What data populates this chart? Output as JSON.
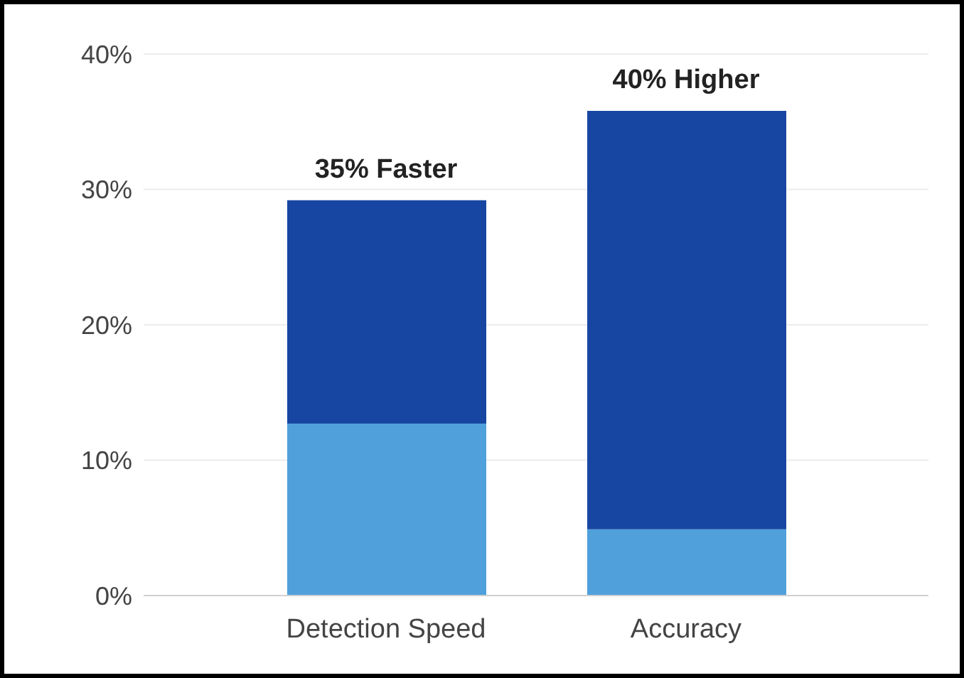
{
  "chart_data": {
    "type": "bar",
    "stacked": true,
    "categories": [
      "Detection Speed",
      "Accuracy"
    ],
    "series": [
      {
        "color": "#4fa0db",
        "values": [
          12.7,
          4.9
        ]
      },
      {
        "color": "#1746a2",
        "values": [
          16.5,
          30.9
        ]
      }
    ],
    "annotations": [
      {
        "text": "35% Faster",
        "x": "Detection Speed",
        "y": 29.2
      },
      {
        "text": "40% Higher",
        "x": "Accuracy",
        "y": 35.8
      }
    ],
    "ylim": [
      0,
      40
    ],
    "yticks": [
      {
        "value": 0,
        "label": "0%"
      },
      {
        "value": 10,
        "label": "10%"
      },
      {
        "value": 20,
        "label": "20%"
      },
      {
        "value": 30,
        "label": "30%"
      },
      {
        "value": 40,
        "label": "40%"
      }
    ],
    "grid": "y"
  }
}
